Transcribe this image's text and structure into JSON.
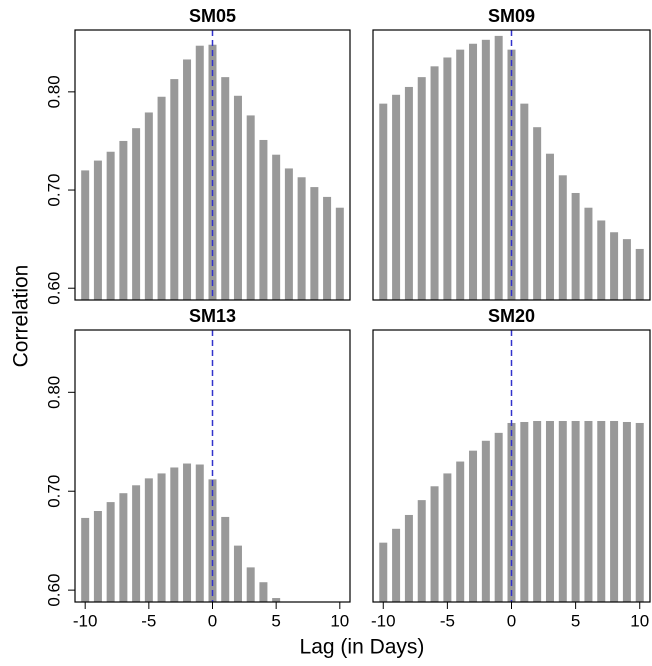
{
  "xlabel": "Lag (in Days)",
  "ylabel": "Correlation",
  "chart_data": [
    {
      "type": "bar",
      "title": "SM05",
      "color": "#999999",
      "vline": 0,
      "vline_color": "#3333cc",
      "x": [
        -10,
        -9,
        -8,
        -7,
        -6,
        -5,
        -4,
        -3,
        -2,
        -1,
        0,
        1,
        2,
        3,
        4,
        5,
        6,
        7,
        8,
        9,
        10
      ],
      "values": [
        0.72,
        0.73,
        0.739,
        0.75,
        0.763,
        0.779,
        0.795,
        0.813,
        0.833,
        0.847,
        0.848,
        0.815,
        0.796,
        0.776,
        0.751,
        0.736,
        0.722,
        0.713,
        0.703,
        0.693,
        0.682
      ],
      "xlim": [
        -10.8,
        10.8
      ],
      "ylim": [
        0.588,
        0.863
      ],
      "yticks": [
        {
          "value": 0.6,
          "label": "0.60"
        },
        {
          "value": 0.7,
          "label": "0.70"
        },
        {
          "value": 0.8,
          "label": "0.80"
        }
      ]
    },
    {
      "type": "bar",
      "title": "SM09",
      "color": "#999999",
      "vline": 0,
      "vline_color": "#3333cc",
      "x": [
        -10,
        -9,
        -8,
        -7,
        -6,
        -5,
        -4,
        -3,
        -2,
        -1,
        0,
        1,
        2,
        3,
        4,
        5,
        6,
        7,
        8,
        9,
        10
      ],
      "values": [
        0.788,
        0.797,
        0.805,
        0.815,
        0.826,
        0.835,
        0.843,
        0.849,
        0.853,
        0.857,
        0.843,
        0.788,
        0.764,
        0.737,
        0.715,
        0.697,
        0.682,
        0.669,
        0.657,
        0.65,
        0.64
      ],
      "xlim": [
        -10.8,
        10.8
      ],
      "ylim": [
        0.588,
        0.863
      ]
    },
    {
      "type": "bar",
      "title": "SM13",
      "color": "#999999",
      "vline": 0,
      "vline_color": "#3333cc",
      "x": [
        -10,
        -9,
        -8,
        -7,
        -6,
        -5,
        -4,
        -3,
        -2,
        -1,
        0,
        1,
        2,
        3,
        4,
        5,
        6,
        7,
        8,
        9,
        10
      ],
      "values": [
        0.673,
        0.68,
        0.689,
        0.698,
        0.706,
        0.713,
        0.718,
        0.724,
        0.728,
        0.727,
        0.712,
        0.674,
        0.645,
        0.623,
        0.608,
        0.592,
        null,
        null,
        null,
        null,
        null
      ],
      "xlim": [
        -10.8,
        10.8
      ],
      "ylim": [
        0.588,
        0.863
      ],
      "yticks": [
        {
          "value": 0.6,
          "label": "0.60"
        },
        {
          "value": 0.7,
          "label": "0.70"
        },
        {
          "value": 0.8,
          "label": "0.80"
        }
      ],
      "xticks": [
        -10,
        -5,
        0,
        5,
        10
      ]
    },
    {
      "type": "bar",
      "title": "SM20",
      "color": "#999999",
      "vline": 0,
      "vline_color": "#3333cc",
      "x": [
        -10,
        -9,
        -8,
        -7,
        -6,
        -5,
        -4,
        -3,
        -2,
        -1,
        0,
        1,
        2,
        3,
        4,
        5,
        6,
        7,
        8,
        9,
        10
      ],
      "values": [
        0.648,
        0.662,
        0.676,
        0.691,
        0.705,
        0.718,
        0.73,
        0.741,
        0.751,
        0.759,
        0.769,
        0.77,
        0.771,
        0.771,
        0.771,
        0.771,
        0.771,
        0.771,
        0.771,
        0.77,
        0.769
      ],
      "xlim": [
        -10.8,
        10.8
      ],
      "ylim": [
        0.588,
        0.863
      ],
      "xticks": [
        -10,
        -5,
        0,
        5,
        10
      ]
    }
  ]
}
